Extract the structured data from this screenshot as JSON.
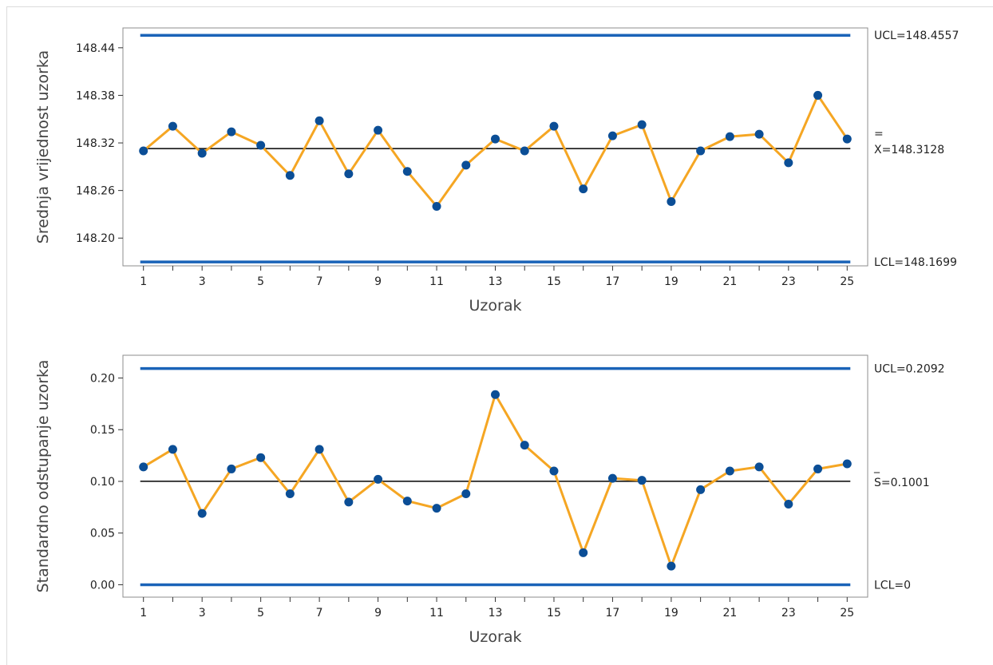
{
  "chart_data": [
    {
      "type": "line",
      "chart": "xbar",
      "xlabel": "Uzorak",
      "ylabel": "Srednja vrijednost uzorka",
      "x": [
        1,
        2,
        3,
        4,
        5,
        6,
        7,
        8,
        9,
        10,
        11,
        12,
        13,
        14,
        15,
        16,
        17,
        18,
        19,
        20,
        21,
        22,
        23,
        24,
        25
      ],
      "xticks": [
        "1",
        "3",
        "5",
        "7",
        "9",
        "11",
        "13",
        "15",
        "17",
        "19",
        "21",
        "23",
        "25"
      ],
      "yticks": [
        "148.20",
        "148.26",
        "148.32",
        "148.38",
        "148.44"
      ],
      "ylim": [
        148.165,
        148.465
      ],
      "series": [
        {
          "values": [
            148.31,
            148.341,
            148.307,
            148.334,
            148.317,
            148.279,
            148.348,
            148.281,
            148.336,
            148.284,
            148.24,
            148.292,
            148.325,
            148.31,
            148.341,
            148.262,
            148.329,
            148.343,
            148.246,
            148.31,
            148.328,
            148.331,
            148.295,
            148.38,
            148.325
          ]
        }
      ],
      "limits": {
        "ucl": 148.4557,
        "ucl_label": "UCL=148.4557",
        "center": 148.3128,
        "center_bar": "=",
        "center_label": "X=148.3128",
        "lcl": 148.1699,
        "lcl_label": "LCL=148.1699"
      },
      "colors": {
        "line": "#f5a623",
        "marker": "#0b4e96",
        "limit": "#1a63b8",
        "center": "#000000"
      },
      "grid": false
    },
    {
      "type": "line",
      "chart": "s",
      "xlabel": "Uzorak",
      "ylabel": "Standardno odstupanje uzorka",
      "x": [
        1,
        2,
        3,
        4,
        5,
        6,
        7,
        8,
        9,
        10,
        11,
        12,
        13,
        14,
        15,
        16,
        17,
        18,
        19,
        20,
        21,
        22,
        23,
        24,
        25
      ],
      "xticks": [
        "1",
        "3",
        "5",
        "7",
        "9",
        "11",
        "13",
        "15",
        "17",
        "19",
        "21",
        "23",
        "25"
      ],
      "yticks": [
        "0.00",
        "0.05",
        "0.10",
        "0.15",
        "0.20"
      ],
      "ylim": [
        -0.012,
        0.222
      ],
      "series": [
        {
          "values": [
            0.114,
            0.131,
            0.069,
            0.112,
            0.123,
            0.088,
            0.131,
            0.08,
            0.102,
            0.081,
            0.074,
            0.088,
            0.184,
            0.135,
            0.11,
            0.031,
            0.103,
            0.101,
            0.018,
            0.092,
            0.11,
            0.114,
            0.078,
            0.112,
            0.117
          ]
        }
      ],
      "limits": {
        "ucl": 0.2092,
        "ucl_label": "UCL=0.2092",
        "center": 0.1001,
        "center_bar": "_",
        "center_label": "S=0.1001",
        "lcl": 0,
        "lcl_label": "LCL=0"
      },
      "colors": {
        "line": "#f5a623",
        "marker": "#0b4e96",
        "limit": "#1a63b8",
        "center": "#000000"
      },
      "grid": false
    }
  ]
}
